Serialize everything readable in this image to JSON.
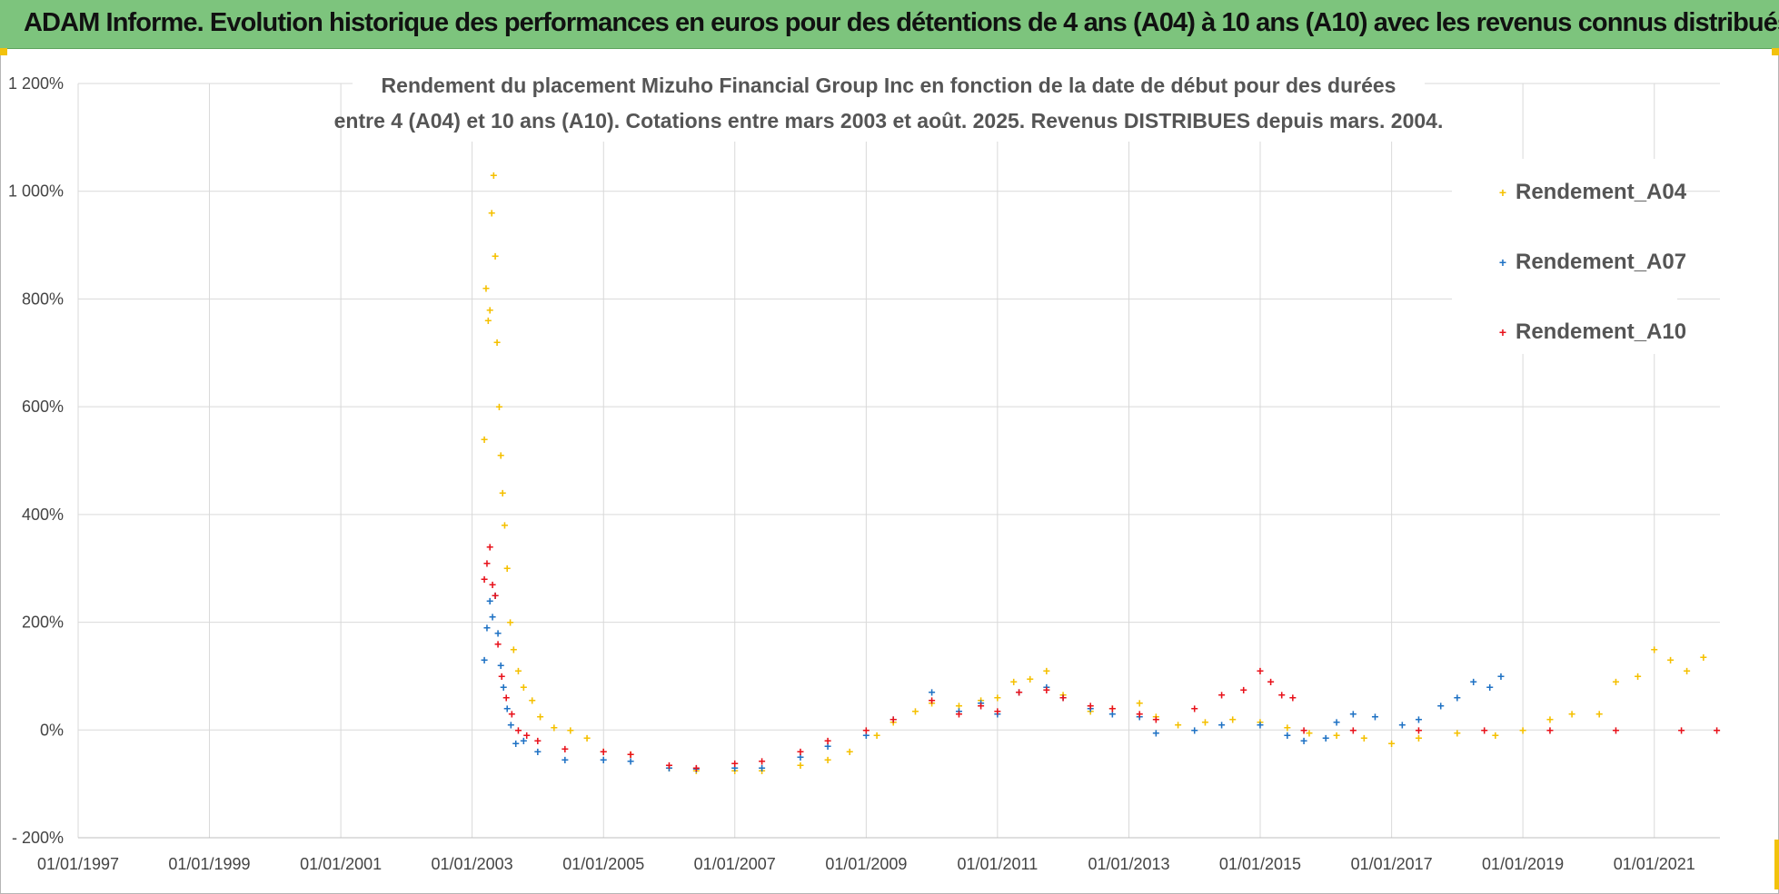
{
  "banner": {
    "title": "ADAM Informe. Evolution historique des performances en euros pour des détentions de 4 ans (A04) à 10 ans (A10) avec les revenus connus distribués",
    "background": "#7dc47d"
  },
  "chart_data": {
    "type": "scatter",
    "title_lines": [
      "Rendement du placement Mizuho Financial Group Inc en fonction de la date de début pour des durées",
      "entre 4 (A04) et 10 ans (A10).  Cotations entre mars 2003 et août. 2025. Revenus DISTRIBUES depuis mars. 2004."
    ],
    "xlabel": "",
    "ylabel": "",
    "x_range": [
      "1997-01-01",
      "2022-01-01"
    ],
    "ylim": [
      -200,
      1200
    ],
    "y_unit": "%",
    "y_ticks": [
      {
        "value": -200,
        "label": "- 200%"
      },
      {
        "value": 0,
        "label": "0%"
      },
      {
        "value": 200,
        "label": "200%"
      },
      {
        "value": 400,
        "label": "400%"
      },
      {
        "value": 600,
        "label": "600%"
      },
      {
        "value": 800,
        "label": "800%"
      },
      {
        "value": 1000,
        "label": "1 000%"
      },
      {
        "value": 1200,
        "label": "1 200%"
      }
    ],
    "x_ticks": [
      {
        "date": "1997-01-01",
        "label": "01/01/1997"
      },
      {
        "date": "1999-01-01",
        "label": "01/01/1999"
      },
      {
        "date": "2001-01-01",
        "label": "01/01/2001"
      },
      {
        "date": "2003-01-01",
        "label": "01/01/2003"
      },
      {
        "date": "2005-01-01",
        "label": "01/01/2005"
      },
      {
        "date": "2007-01-01",
        "label": "01/01/2007"
      },
      {
        "date": "2009-01-01",
        "label": "01/01/2009"
      },
      {
        "date": "2011-01-01",
        "label": "01/01/2011"
      },
      {
        "date": "2013-01-01",
        "label": "01/01/2013"
      },
      {
        "date": "2015-01-01",
        "label": "01/01/2015"
      },
      {
        "date": "2017-01-01",
        "label": "01/01/2017"
      },
      {
        "date": "2019-01-01",
        "label": "01/01/2019"
      },
      {
        "date": "2021-01-01",
        "label": "01/01/2021"
      }
    ],
    "grid": true,
    "legend_position": "top-right",
    "marker": "+",
    "series": [
      {
        "name": "Rendement_A04",
        "color": "#f5c000",
        "points": [
          [
            "2003-03-10",
            540
          ],
          [
            "2003-03-20",
            820
          ],
          [
            "2003-04-01",
            760
          ],
          [
            "2003-04-10",
            780
          ],
          [
            "2003-04-20",
            960
          ],
          [
            "2003-05-01",
            1030
          ],
          [
            "2003-05-10",
            880
          ],
          [
            "2003-05-20",
            720
          ],
          [
            "2003-06-01",
            600
          ],
          [
            "2003-06-10",
            510
          ],
          [
            "2003-06-20",
            440
          ],
          [
            "2003-07-01",
            380
          ],
          [
            "2003-07-15",
            300
          ],
          [
            "2003-08-01",
            200
          ],
          [
            "2003-08-20",
            150
          ],
          [
            "2003-09-15",
            110
          ],
          [
            "2003-10-15",
            80
          ],
          [
            "2003-12-01",
            55
          ],
          [
            "2004-01-15",
            25
          ],
          [
            "2004-04-01",
            5
          ],
          [
            "2004-07-01",
            0
          ],
          [
            "2004-10-01",
            -15
          ],
          [
            "2005-01-01",
            -40
          ],
          [
            "2005-06-01",
            -45
          ],
          [
            "2006-01-01",
            -70
          ],
          [
            "2006-06-01",
            -75
          ],
          [
            "2007-01-01",
            -75
          ],
          [
            "2007-06-01",
            -75
          ],
          [
            "2008-01-01",
            -65
          ],
          [
            "2008-06-01",
            -55
          ],
          [
            "2008-10-01",
            -40
          ],
          [
            "2009-03-01",
            -10
          ],
          [
            "2009-06-01",
            15
          ],
          [
            "2009-10-01",
            35
          ],
          [
            "2010-01-01",
            50
          ],
          [
            "2010-06-01",
            45
          ],
          [
            "2010-10-01",
            55
          ],
          [
            "2011-01-01",
            60
          ],
          [
            "2011-04-01",
            90
          ],
          [
            "2011-07-01",
            95
          ],
          [
            "2011-10-01",
            110
          ],
          [
            "2012-01-01",
            65
          ],
          [
            "2012-06-01",
            35
          ],
          [
            "2012-10-01",
            40
          ],
          [
            "2013-03-01",
            50
          ],
          [
            "2013-06-01",
            25
          ],
          [
            "2013-10-01",
            10
          ],
          [
            "2014-03-01",
            15
          ],
          [
            "2014-08-01",
            20
          ],
          [
            "2015-01-01",
            15
          ],
          [
            "2015-06-01",
            5
          ],
          [
            "2015-10-01",
            -5
          ],
          [
            "2016-03-01",
            -10
          ],
          [
            "2016-08-01",
            -15
          ],
          [
            "2017-01-01",
            -25
          ],
          [
            "2017-06-01",
            -15
          ],
          [
            "2018-01-01",
            -5
          ],
          [
            "2018-08-01",
            -10
          ],
          [
            "2019-01-01",
            0
          ],
          [
            "2019-06-01",
            20
          ],
          [
            "2019-10-01",
            30
          ],
          [
            "2020-03-01",
            30
          ],
          [
            "2020-06-01",
            90
          ],
          [
            "2020-10-01",
            100
          ],
          [
            "2021-01-01",
            150
          ],
          [
            "2021-04-01",
            130
          ],
          [
            "2021-07-01",
            110
          ],
          [
            "2021-10-01",
            135
          ]
        ]
      },
      {
        "name": "Rendement_A07",
        "color": "#1f72c4",
        "points": [
          [
            "2003-03-10",
            130
          ],
          [
            "2003-03-25",
            190
          ],
          [
            "2003-04-10",
            240
          ],
          [
            "2003-04-25",
            210
          ],
          [
            "2003-05-10",
            250
          ],
          [
            "2003-05-25",
            180
          ],
          [
            "2003-06-10",
            120
          ],
          [
            "2003-06-25",
            80
          ],
          [
            "2003-07-15",
            40
          ],
          [
            "2003-08-05",
            10
          ],
          [
            "2003-09-01",
            -25
          ],
          [
            "2003-10-15",
            -20
          ],
          [
            "2004-01-01",
            -40
          ],
          [
            "2004-06-01",
            -55
          ],
          [
            "2005-01-01",
            -55
          ],
          [
            "2005-06-01",
            -58
          ],
          [
            "2006-01-01",
            -70
          ],
          [
            "2006-06-01",
            -72
          ],
          [
            "2007-01-01",
            -70
          ],
          [
            "2007-06-01",
            -70
          ],
          [
            "2008-01-01",
            -50
          ],
          [
            "2008-06-01",
            -30
          ],
          [
            "2009-01-01",
            -10
          ],
          [
            "2009-06-01",
            20
          ],
          [
            "2010-01-01",
            70
          ],
          [
            "2010-06-01",
            35
          ],
          [
            "2010-10-01",
            50
          ],
          [
            "2011-01-01",
            30
          ],
          [
            "2011-05-01",
            70
          ],
          [
            "2011-10-01",
            80
          ],
          [
            "2012-01-01",
            60
          ],
          [
            "2012-06-01",
            40
          ],
          [
            "2012-10-01",
            30
          ],
          [
            "2013-03-01",
            25
          ],
          [
            "2013-06-01",
            -5
          ],
          [
            "2014-01-01",
            0
          ],
          [
            "2014-06-01",
            10
          ],
          [
            "2015-01-01",
            10
          ],
          [
            "2015-06-01",
            -10
          ],
          [
            "2015-09-01",
            -20
          ],
          [
            "2016-01-01",
            -15
          ],
          [
            "2016-03-01",
            15
          ],
          [
            "2016-06-01",
            30
          ],
          [
            "2016-10-01",
            25
          ],
          [
            "2017-03-01",
            10
          ],
          [
            "2017-06-01",
            20
          ],
          [
            "2017-10-01",
            45
          ],
          [
            "2018-01-01",
            60
          ],
          [
            "2018-04-01",
            90
          ],
          [
            "2018-07-01",
            80
          ],
          [
            "2018-09-01",
            100
          ]
        ]
      },
      {
        "name": "Rendement_A10",
        "color": "#e8121b",
        "points": [
          [
            "2003-03-10",
            280
          ],
          [
            "2003-03-25",
            310
          ],
          [
            "2003-04-10",
            340
          ],
          [
            "2003-04-25",
            270
          ],
          [
            "2003-05-10",
            250
          ],
          [
            "2003-05-25",
            160
          ],
          [
            "2003-06-15",
            100
          ],
          [
            "2003-07-10",
            60
          ],
          [
            "2003-08-10",
            30
          ],
          [
            "2003-09-15",
            0
          ],
          [
            "2003-11-01",
            -10
          ],
          [
            "2004-01-01",
            -20
          ],
          [
            "2004-06-01",
            -35
          ],
          [
            "2005-01-01",
            -40
          ],
          [
            "2005-06-01",
            -45
          ],
          [
            "2006-01-01",
            -65
          ],
          [
            "2006-06-01",
            -70
          ],
          [
            "2007-01-01",
            -62
          ],
          [
            "2007-06-01",
            -58
          ],
          [
            "2008-01-01",
            -40
          ],
          [
            "2008-06-01",
            -20
          ],
          [
            "2009-01-01",
            0
          ],
          [
            "2009-06-01",
            20
          ],
          [
            "2010-01-01",
            55
          ],
          [
            "2010-06-01",
            30
          ],
          [
            "2010-10-01",
            45
          ],
          [
            "2011-01-01",
            35
          ],
          [
            "2011-05-01",
            70
          ],
          [
            "2011-10-01",
            75
          ],
          [
            "2012-01-01",
            60
          ],
          [
            "2012-06-01",
            45
          ],
          [
            "2012-10-01",
            40
          ],
          [
            "2013-03-01",
            30
          ],
          [
            "2013-06-01",
            20
          ],
          [
            "2014-01-01",
            40
          ],
          [
            "2014-06-01",
            65
          ],
          [
            "2014-10-01",
            75
          ],
          [
            "2015-01-01",
            110
          ],
          [
            "2015-03-01",
            90
          ],
          [
            "2015-05-01",
            65
          ],
          [
            "2015-07-01",
            60
          ],
          [
            "2015-09-01",
            0
          ],
          [
            "2016-06-01",
            0
          ],
          [
            "2017-06-01",
            0
          ],
          [
            "2018-06-01",
            0
          ],
          [
            "2019-06-01",
            0
          ],
          [
            "2020-06-01",
            0
          ],
          [
            "2021-06-01",
            0
          ],
          [
            "2021-12-15",
            0
          ]
        ]
      }
    ]
  }
}
